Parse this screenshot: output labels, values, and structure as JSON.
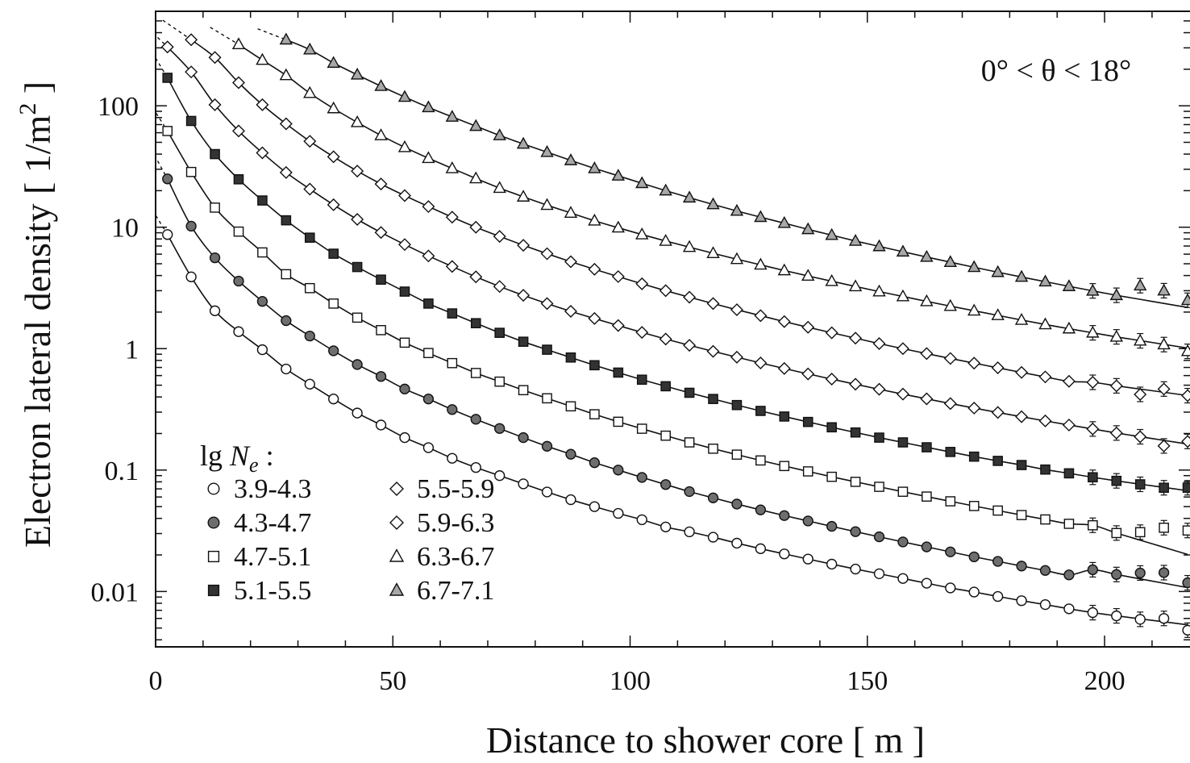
{
  "chart_data": {
    "type": "scatter",
    "xlabel": "Distance to shower core  [ m ]",
    "ylabel_main": "Electron lateral density  [ 1/m",
    "ylabel_sup": "2",
    "ylabel_tail": " ]",
    "annotation": "0° < θ < 18°",
    "xlim": [
      0,
      218
    ],
    "ylim": [
      0.0035,
      600
    ],
    "yscale": "log",
    "xticks": [
      0,
      50,
      100,
      150,
      200
    ],
    "xtick_labels": [
      "0",
      "50",
      "100",
      "150",
      "200"
    ],
    "yticks": [
      0.01,
      0.1,
      1,
      10,
      100
    ],
    "ytick_labels": [
      "0.01",
      "0.1",
      "1",
      "10",
      "100"
    ],
    "legend_title_prefix": "lg ",
    "legend_title_var": "N",
    "legend_title_sub": "e",
    "legend_title_suffix": " :",
    "legend_position": "bottom-left",
    "grid": false,
    "series": [
      {
        "name": "3.9-4.3",
        "marker": "circle",
        "fill": "#ffffff",
        "x": [
          2.5,
          7.5,
          12.5,
          17.5,
          22.5,
          27.5,
          32.5,
          37.5,
          42.5,
          47.5,
          52.5,
          57.5,
          62.5,
          67.5,
          72.5,
          77.5,
          82.5,
          87.5,
          92.5,
          97.5,
          102.5,
          107.5,
          112.5,
          117.5,
          122.5,
          127.5,
          132.5,
          137.5,
          142.5,
          147.5,
          152.5,
          157.5,
          162.5,
          167.5,
          172.5,
          177.5,
          182.5,
          187.5,
          192.5,
          197.5,
          202.5,
          207.5,
          212.5,
          217.5
        ],
        "y": [
          8.7,
          3.9,
          2.05,
          1.38,
          0.98,
          0.68,
          0.51,
          0.385,
          0.295,
          0.235,
          0.185,
          0.153,
          0.125,
          0.105,
          0.09,
          0.077,
          0.066,
          0.057,
          0.05,
          0.044,
          0.039,
          0.034,
          0.031,
          0.028,
          0.025,
          0.0225,
          0.0204,
          0.0185,
          0.0168,
          0.0153,
          0.014,
          0.0128,
          0.0117,
          0.0107,
          0.0099,
          0.0091,
          0.0084,
          0.0078,
          0.0072,
          0.0067,
          0.0063,
          0.0059,
          0.006,
          0.0048
        ]
      },
      {
        "name": "4.3-4.7",
        "marker": "circle",
        "fill": "#6e6e6e",
        "x": [
          2.5,
          7.5,
          12.5,
          17.5,
          22.5,
          27.5,
          32.5,
          37.5,
          42.5,
          47.5,
          52.5,
          57.5,
          62.5,
          67.5,
          72.5,
          77.5,
          82.5,
          87.5,
          92.5,
          97.5,
          102.5,
          107.5,
          112.5,
          117.5,
          122.5,
          127.5,
          132.5,
          137.5,
          142.5,
          147.5,
          152.5,
          157.5,
          162.5,
          167.5,
          172.5,
          177.5,
          182.5,
          187.5,
          192.5,
          197.5,
          202.5,
          207.5,
          212.5,
          217.5
        ],
        "y": [
          25,
          10.2,
          5.6,
          3.6,
          2.45,
          1.7,
          1.27,
          0.96,
          0.74,
          0.59,
          0.465,
          0.385,
          0.315,
          0.262,
          0.22,
          0.185,
          0.157,
          0.135,
          0.115,
          0.1,
          0.087,
          0.076,
          0.0665,
          0.059,
          0.0525,
          0.047,
          0.0422,
          0.0381,
          0.0344,
          0.0311,
          0.0282,
          0.0256,
          0.0233,
          0.0212,
          0.0193,
          0.0177,
          0.0162,
          0.0149,
          0.0137,
          0.0151,
          0.0138,
          0.0142,
          0.0143,
          0.0118
        ]
      },
      {
        "name": "4.7-5.1",
        "marker": "square",
        "fill": "#ffffff",
        "x": [
          2.5,
          7.5,
          12.5,
          17.5,
          22.5,
          27.5,
          32.5,
          37.5,
          42.5,
          47.5,
          52.5,
          57.5,
          62.5,
          67.5,
          72.5,
          77.5,
          82.5,
          87.5,
          92.5,
          97.5,
          102.5,
          107.5,
          112.5,
          117.5,
          122.5,
          127.5,
          132.5,
          137.5,
          142.5,
          147.5,
          152.5,
          157.5,
          162.5,
          167.5,
          172.5,
          177.5,
          182.5,
          187.5,
          192.5,
          197.5,
          202.5,
          207.5,
          212.5,
          217.5
        ],
        "y": [
          62,
          28.5,
          14.5,
          9.2,
          6.2,
          4.1,
          3.15,
          2.35,
          1.8,
          1.42,
          1.12,
          0.92,
          0.76,
          0.63,
          0.535,
          0.455,
          0.39,
          0.335,
          0.288,
          0.25,
          0.219,
          0.192,
          0.169,
          0.15,
          0.134,
          0.12,
          0.108,
          0.0975,
          0.088,
          0.08,
          0.0728,
          0.0663,
          0.0605,
          0.0553,
          0.0506,
          0.0464,
          0.0426,
          0.0392,
          0.0361,
          0.0351,
          0.0303,
          0.0308,
          0.0335,
          0.0318
        ]
      },
      {
        "name": "5.1-5.5",
        "marker": "square",
        "fill": "#333333",
        "x": [
          2.5,
          7.5,
          12.5,
          17.5,
          22.5,
          27.5,
          32.5,
          37.5,
          42.5,
          47.5,
          52.5,
          57.5,
          62.5,
          67.5,
          72.5,
          77.5,
          82.5,
          87.5,
          92.5,
          97.5,
          102.5,
          107.5,
          112.5,
          117.5,
          122.5,
          127.5,
          132.5,
          137.5,
          142.5,
          147.5,
          152.5,
          157.5,
          162.5,
          167.5,
          172.5,
          177.5,
          182.5,
          187.5,
          192.5,
          197.5,
          202.5,
          207.5,
          212.5,
          217.5
        ],
        "y": [
          170,
          75,
          40,
          24.8,
          16.6,
          11.4,
          8.2,
          6.05,
          4.7,
          3.7,
          2.95,
          2.35,
          1.95,
          1.62,
          1.35,
          1.14,
          0.98,
          0.845,
          0.73,
          0.635,
          0.555,
          0.49,
          0.433,
          0.385,
          0.343,
          0.307,
          0.276,
          0.249,
          0.225,
          0.204,
          0.185,
          0.169,
          0.154,
          0.141,
          0.129,
          0.119,
          0.11,
          0.101,
          0.094,
          0.0872,
          0.0815,
          0.0763,
          0.0715,
          0.0715
        ]
      },
      {
        "name": "5.5-5.9",
        "marker": "diamond",
        "fill": "#ffffff",
        "x": [
          2.5,
          7.5,
          12.5,
          17.5,
          22.5,
          27.5,
          32.5,
          37.5,
          42.5,
          47.5,
          52.5,
          57.5,
          62.5,
          67.5,
          72.5,
          77.5,
          82.5,
          87.5,
          92.5,
          97.5,
          102.5,
          107.5,
          112.5,
          117.5,
          122.5,
          127.5,
          132.5,
          137.5,
          142.5,
          147.5,
          152.5,
          157.5,
          162.5,
          167.5,
          172.5,
          177.5,
          182.5,
          187.5,
          192.5,
          197.5,
          202.5,
          207.5,
          212.5,
          217.5
        ],
        "y": [
          305,
          190,
          102,
          62,
          41,
          28.2,
          20.6,
          15.3,
          11.6,
          9.05,
          7.2,
          5.8,
          4.75,
          3.9,
          3.25,
          2.75,
          2.35,
          2.03,
          1.77,
          1.55,
          1.36,
          1.2,
          1.065,
          0.95,
          0.85,
          0.762,
          0.686,
          0.619,
          0.561,
          0.509,
          0.463,
          0.422,
          0.386,
          0.353,
          0.324,
          0.298,
          0.275,
          0.254,
          0.235,
          0.218,
          0.202,
          0.188,
          0.158,
          0.172
        ]
      },
      {
        "name": "5.9-6.3",
        "marker": "diamond",
        "fill": "#ffffff",
        "x": [
          7.5,
          12.5,
          17.5,
          22.5,
          27.5,
          32.5,
          37.5,
          42.5,
          47.5,
          52.5,
          57.5,
          62.5,
          67.5,
          72.5,
          77.5,
          82.5,
          87.5,
          92.5,
          97.5,
          102.5,
          107.5,
          112.5,
          117.5,
          122.5,
          127.5,
          132.5,
          137.5,
          142.5,
          147.5,
          152.5,
          157.5,
          162.5,
          167.5,
          172.5,
          177.5,
          182.5,
          187.5,
          192.5,
          197.5,
          202.5,
          207.5,
          212.5,
          217.5
        ],
        "y": [
          350,
          250,
          155,
          102,
          71,
          51,
          38,
          29,
          22.7,
          18.2,
          14.8,
          12.1,
          10,
          8.4,
          7.1,
          6.05,
          5.2,
          4.5,
          3.92,
          3.42,
          3.0,
          2.65,
          2.35,
          2.09,
          1.87,
          1.67,
          1.5,
          1.35,
          1.22,
          1.1,
          1.0,
          0.91,
          0.83,
          0.76,
          0.695,
          0.637,
          0.585,
          0.538,
          0.528,
          0.494,
          0.42,
          0.465,
          0.41
        ]
      },
      {
        "name": "6.3-6.7",
        "marker": "triangle",
        "fill": "#ffffff",
        "x": [
          17.5,
          22.5,
          27.5,
          32.5,
          37.5,
          42.5,
          47.5,
          52.5,
          57.5,
          62.5,
          67.5,
          72.5,
          77.5,
          82.5,
          87.5,
          92.5,
          97.5,
          102.5,
          107.5,
          112.5,
          117.5,
          122.5,
          127.5,
          132.5,
          137.5,
          142.5,
          147.5,
          152.5,
          157.5,
          162.5,
          167.5,
          172.5,
          177.5,
          182.5,
          187.5,
          192.5,
          197.5,
          202.5,
          207.5,
          212.5,
          217.5
        ],
        "y": [
          320,
          238,
          178,
          127,
          95,
          73,
          57,
          45.5,
          37,
          30.5,
          25.2,
          21,
          17.8,
          15.2,
          13.1,
          11.3,
          9.9,
          8.7,
          7.7,
          6.85,
          6.1,
          5.45,
          4.9,
          4.4,
          3.97,
          3.59,
          3.25,
          2.95,
          2.69,
          2.45,
          2.24,
          2.05,
          1.88,
          1.72,
          1.58,
          1.46,
          1.35,
          1.25,
          1.16,
          1.08,
          0.95
        ]
      },
      {
        "name": "6.7-7.1",
        "marker": "triangle",
        "fill": "#a8a8a8",
        "x": [
          27.5,
          32.5,
          37.5,
          42.5,
          47.5,
          52.5,
          57.5,
          62.5,
          67.5,
          72.5,
          77.5,
          82.5,
          87.5,
          92.5,
          97.5,
          102.5,
          107.5,
          112.5,
          117.5,
          122.5,
          127.5,
          132.5,
          137.5,
          142.5,
          147.5,
          152.5,
          157.5,
          162.5,
          167.5,
          172.5,
          177.5,
          182.5,
          187.5,
          192.5,
          197.5,
          202.5,
          207.5,
          212.5,
          217.5
        ],
        "y": [
          350,
          290,
          225,
          180,
          145,
          118,
          97,
          81,
          68,
          57,
          48.5,
          41.5,
          35.5,
          30.5,
          26.5,
          23,
          20,
          17.5,
          15.4,
          13.6,
          12.1,
          10.8,
          9.6,
          8.6,
          7.7,
          6.95,
          6.28,
          5.68,
          5.15,
          4.68,
          4.26,
          3.89,
          3.56,
          3.26,
          2.99,
          2.75,
          3.3,
          3.0,
          2.5
        ]
      }
    ]
  }
}
